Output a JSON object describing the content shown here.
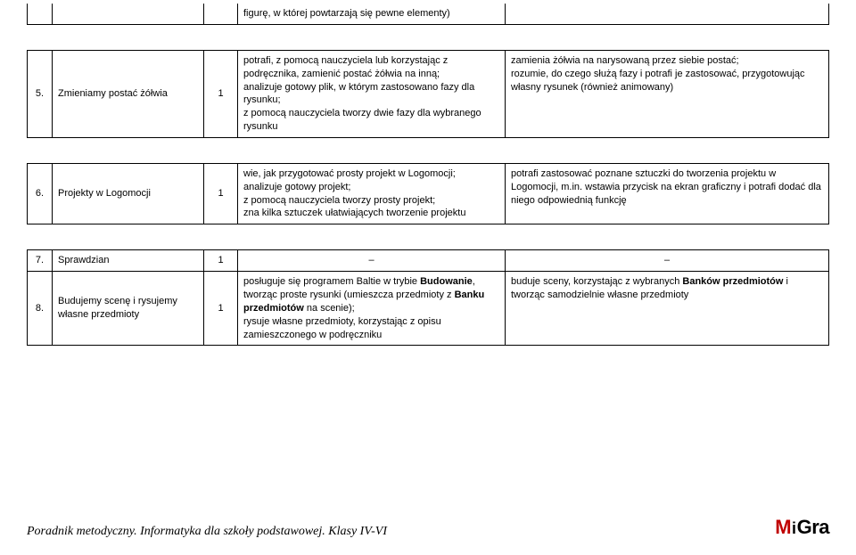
{
  "stub_row": {
    "basic": "figurę, w której powtarzają się pewne elementy)"
  },
  "rows": [
    {
      "num": "5.",
      "topic": "Zmieniamy postać żółwia",
      "hours": "1",
      "basic": "potrafi, z pomocą nauczyciela lub korzystając z podręcznika, zamienić postać żółwia na inną;\nanalizuje gotowy plik, w którym zastosowano fazy dla rysunku;\nz pomocą nauczyciela tworzy dwie fazy dla wybranego rysunku",
      "ext": "zamienia żółwia na narysowaną przez siebie postać;\nrozumie, do czego służą fazy i potrafi je zastosować, przygotowując własny rysunek (również animowany)"
    },
    {
      "num": "6.",
      "topic": "Projekty w Logomocji",
      "hours": "1",
      "basic": "wie, jak przygotować prosty projekt w Logomocji;\nanalizuje gotowy projekt;\nz pomocą nauczyciela tworzy prosty projekt;\nzna kilka sztuczek ułatwiających tworzenie projektu",
      "ext": "potrafi zastosować poznane sztuczki do tworzenia projektu w Logomocji, m.in. wstawia przycisk na ekran graficzny i potrafi dodać dla niego odpowiednią funkcję"
    },
    {
      "num": "7.",
      "topic": "Sprawdzian",
      "hours": "1",
      "basic": "–",
      "ext": "–"
    },
    {
      "num": "8.",
      "topic": "Budujemy scenę i rysujemy własne przedmioty",
      "hours": "1",
      "basic_html": "posługuje się programem Baltie w trybie <b>Budowanie</b>, tworząc proste rysunki (umieszcza przedmioty z <b>Banku przedmiotów</b> na scenie);<br>rysuje własne przedmioty, korzystając z opisu zamieszczonego w podręczniku",
      "ext_html": "buduje sceny, korzystając z wybranych <b>Banków przedmiotów</b> i tworząc samodzielnie własne przedmioty"
    }
  ],
  "footer": "Poradnik metodyczny. Informatyka dla szkoły podstawowej. Klasy IV-VI",
  "logo": {
    "m": "M",
    "i": "i",
    "g": "G",
    "r": "r",
    "a": "a"
  }
}
